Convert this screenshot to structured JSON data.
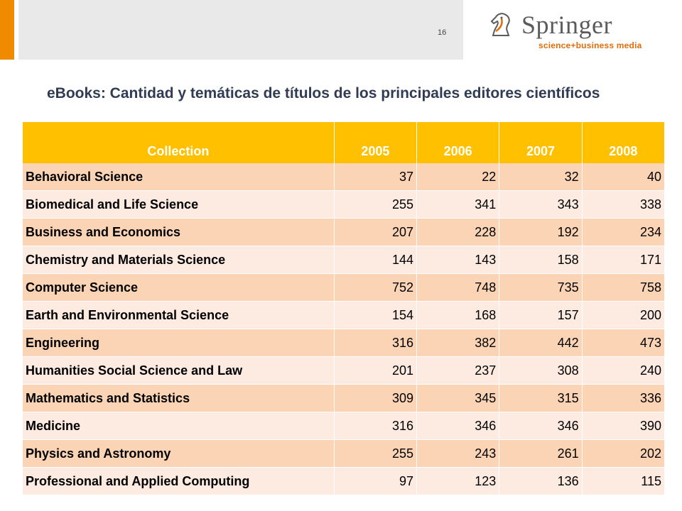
{
  "header": {
    "page_number": "16",
    "logo": {
      "wordmark": "Springer",
      "tagline": "science+business media"
    }
  },
  "title": "eBooks: Cantidad y temáticas de títulos de los principales editores científicos",
  "table": {
    "columns": [
      "Collection",
      "2005",
      "2006",
      "2007",
      "2008"
    ],
    "rows": [
      [
        "Behavioral Science",
        "37",
        "22",
        "32",
        "40"
      ],
      [
        "Biomedical and Life Science",
        "255",
        "341",
        "343",
        "338"
      ],
      [
        "Business and Economics",
        "207",
        "228",
        "192",
        "234"
      ],
      [
        "Chemistry and Materials Science",
        "144",
        "143",
        "158",
        "171"
      ],
      [
        "Computer Science",
        "752",
        "748",
        "735",
        "758"
      ],
      [
        "Earth and Environmental Science",
        "154",
        "168",
        "157",
        "200"
      ],
      [
        "Engineering",
        "316",
        "382",
        "442",
        "473"
      ],
      [
        "Humanities Social Science and Law",
        "201",
        "237",
        "308",
        "240"
      ],
      [
        "Mathematics and Statistics",
        "309",
        "345",
        "315",
        "336"
      ],
      [
        "Medicine",
        "316",
        "346",
        "346",
        "390"
      ],
      [
        "Physics and Astronomy",
        "255",
        "243",
        "261",
        "202"
      ],
      [
        "Professional and Applied Computing",
        "97",
        "123",
        "136",
        "115"
      ]
    ]
  },
  "colors": {
    "accent_orange": "#f08a00",
    "header_yellow": "#ffc000",
    "row_dark": "#fbd4b5",
    "row_light": "#fdeae0",
    "title_navy": "#2f3c53"
  }
}
